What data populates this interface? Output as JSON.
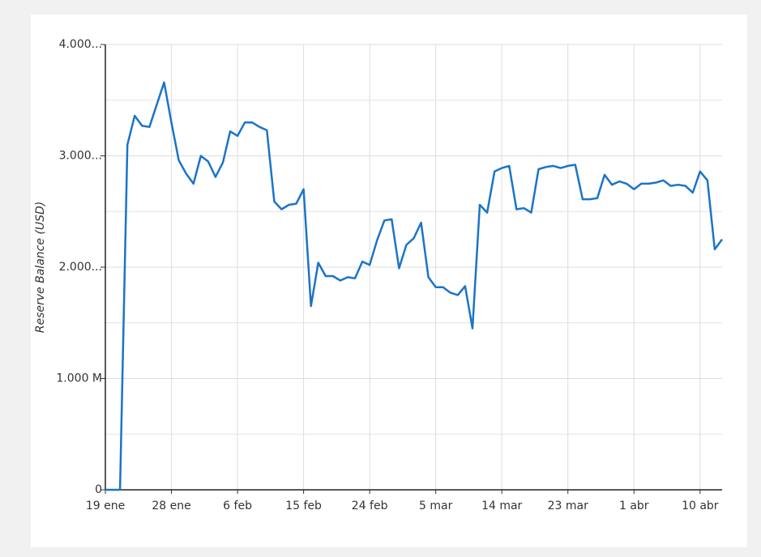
{
  "chart_data": {
    "type": "line",
    "y_label": "Reserve Balance (USD)",
    "categories": [
      "19 ene",
      null,
      null,
      null,
      null,
      null,
      null,
      null,
      null,
      "28 ene",
      null,
      null,
      null,
      null,
      null,
      null,
      null,
      null,
      "6 feb",
      null,
      null,
      null,
      null,
      null,
      null,
      null,
      null,
      "15 feb",
      null,
      null,
      null,
      null,
      null,
      null,
      null,
      null,
      "24 feb",
      null,
      null,
      null,
      null,
      null,
      null,
      null,
      null,
      "5 mar",
      null,
      null,
      null,
      null,
      null,
      null,
      null,
      null,
      "14 mar",
      null,
      null,
      null,
      null,
      null,
      null,
      null,
      null,
      "23 mar",
      null,
      null,
      null,
      null,
      null,
      null,
      null,
      null,
      "1 abr",
      null,
      null,
      null,
      null,
      null,
      null,
      null,
      null,
      "10 abr",
      null,
      null,
      null
    ],
    "series": [
      {
        "color": "#1b74c9",
        "values": [
          0,
          0,
          0,
          3100,
          3360,
          3270,
          3260,
          3460,
          3660,
          3300,
          2960,
          2840,
          2750,
          3000,
          2950,
          2810,
          2940,
          3220,
          3180,
          3300,
          3300,
          3260,
          3230,
          2590,
          2520,
          2560,
          2570,
          2700,
          1650,
          2040,
          1920,
          1920,
          1880,
          1910,
          1900,
          2050,
          2020,
          2240,
          2420,
          2430,
          1990,
          2200,
          2260,
          2400,
          1910,
          1820,
          1820,
          1770,
          1750,
          1830,
          1450,
          2560,
          2490,
          2860,
          2890,
          2910,
          2520,
          2530,
          2490,
          2880,
          2900,
          2910,
          2890,
          2910,
          2920,
          2610,
          2610,
          2620,
          2830,
          2740,
          2770,
          2750,
          2700,
          2750,
          2750,
          2760,
          2780,
          2730,
          2740,
          2730,
          2670,
          2860,
          2780,
          2160,
          2250
        ]
      }
    ],
    "ylim": [
      0,
      4000
    ],
    "yticks": [
      0,
      {
        "value": 1000,
        "label": "1.000 M"
      },
      {
        "value": 2000,
        "label": "2.000..."
      },
      {
        "value": 3000,
        "label": "3.000..."
      },
      {
        "value": 4000,
        "label": "4.000..."
      }
    ],
    "y_minor_grid": [
      500,
      1500,
      2500,
      3500
    ],
    "grid": true
  }
}
